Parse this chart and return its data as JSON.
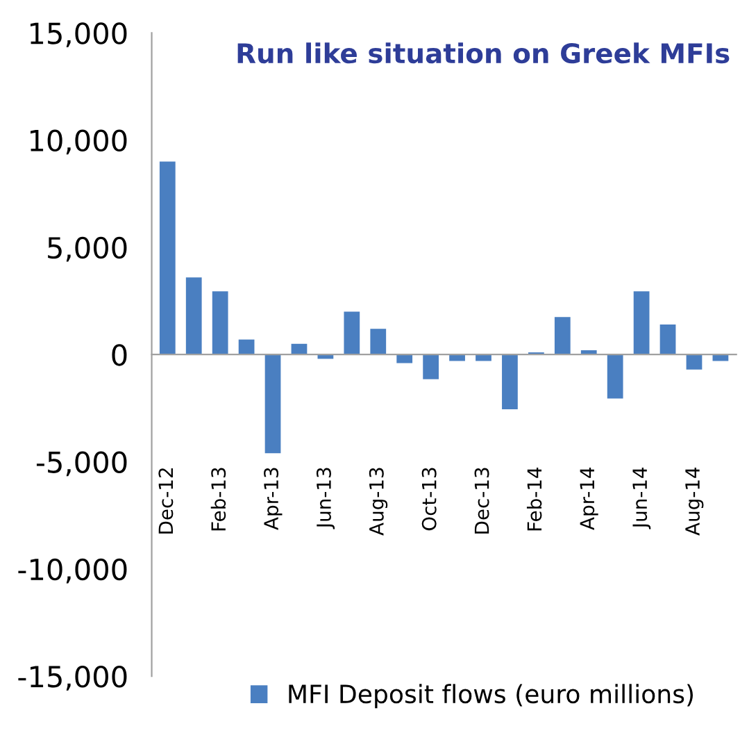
{
  "chart_data": {
    "type": "bar",
    "title": "Run like situation on Greek MFIs",
    "categories": [
      "Dec-12",
      null,
      "Feb-13",
      null,
      "Apr-13",
      null,
      "Jun-13",
      null,
      "Aug-13",
      null,
      "Oct-13",
      null,
      "Dec-13",
      null,
      "Feb-14",
      null,
      "Apr-14",
      null,
      "Jun-14",
      null,
      "Aug-14",
      null
    ],
    "series": [
      {
        "name": "MFI Deposit flows (euro millions)",
        "color": "#4a7fc1",
        "values": [
          9000,
          3600,
          2950,
          700,
          -4600,
          500,
          -200,
          2000,
          1200,
          -400,
          -1150,
          -300,
          -300,
          -2550,
          100,
          1750,
          200,
          -2050,
          2950,
          1400,
          -700,
          -300
        ]
      }
    ],
    "ylim": [
      -15000,
      15000
    ],
    "yticks": [
      {
        "value": -15000,
        "label": "-15,000"
      },
      {
        "value": -10000,
        "label": "-10,000"
      },
      {
        "value": -5000,
        "label": "-5,000"
      },
      0,
      {
        "value": 5000,
        "label": "5,000"
      },
      {
        "value": 10000,
        "label": "10,000"
      },
      {
        "value": 15000,
        "label": "15,000"
      }
    ],
    "legend": "bottom"
  }
}
